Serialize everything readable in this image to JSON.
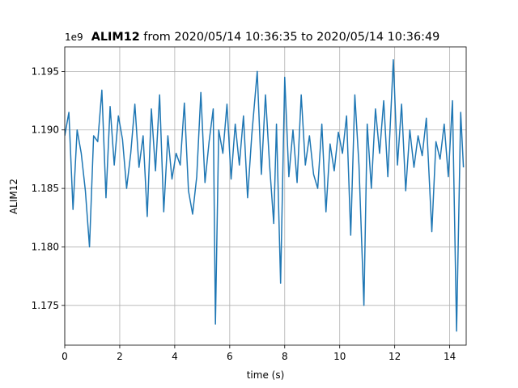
{
  "chart_data": {
    "type": "line",
    "title_bold": "ALIM12",
    "title": " from 2020/05/14 10:36:35 to 2020/05/14 10:36:49",
    "xlabel": "time (s)",
    "ylabel": "ALIM12",
    "y_offset_label": "1e9",
    "x": [
      0.0,
      0.15,
      0.3,
      0.45,
      0.6,
      0.75,
      0.9,
      1.05,
      1.2,
      1.35,
      1.5,
      1.65,
      1.8,
      1.95,
      2.1,
      2.25,
      2.4,
      2.55,
      2.7,
      2.85,
      3.0,
      3.15,
      3.3,
      3.45,
      3.6,
      3.75,
      3.9,
      4.05,
      4.2,
      4.35,
      4.5,
      4.65,
      4.8,
      4.95,
      5.1,
      5.25,
      5.4,
      5.48,
      5.6,
      5.75,
      5.9,
      6.05,
      6.2,
      6.35,
      6.5,
      6.65,
      6.8,
      7.0,
      7.15,
      7.3,
      7.45,
      7.6,
      7.7,
      7.85,
      8.0,
      8.15,
      8.3,
      8.45,
      8.6,
      8.75,
      8.9,
      9.05,
      9.2,
      9.35,
      9.5,
      9.65,
      9.8,
      9.95,
      10.1,
      10.25,
      10.4,
      10.55,
      10.7,
      10.88,
      11.0,
      11.15,
      11.3,
      11.45,
      11.6,
      11.75,
      11.95,
      12.1,
      12.25,
      12.4,
      12.55,
      12.7,
      12.85,
      13.0,
      13.15,
      13.35,
      13.5,
      13.65,
      13.8,
      13.95,
      14.1,
      14.25,
      14.4,
      14.5
    ],
    "series": [
      {
        "name": "ALIM12",
        "color": "#1f77b4",
        "values": [
          1.1895,
          1.1915,
          1.1832,
          1.19,
          1.188,
          1.1848,
          1.18,
          1.1895,
          1.189,
          1.1934,
          1.1842,
          1.192,
          1.187,
          1.1912,
          1.1892,
          1.185,
          1.188,
          1.1922,
          1.1868,
          1.1895,
          1.1826,
          1.1918,
          1.1865,
          1.193,
          1.183,
          1.1895,
          1.1858,
          1.188,
          1.187,
          1.1923,
          1.1848,
          1.1828,
          1.186,
          1.1932,
          1.1855,
          1.189,
          1.1918,
          1.1734,
          1.19,
          1.188,
          1.1922,
          1.1858,
          1.1905,
          1.187,
          1.1912,
          1.1842,
          1.1895,
          1.195,
          1.1862,
          1.193,
          1.187,
          1.182,
          1.1905,
          1.1769,
          1.1945,
          1.186,
          1.19,
          1.1855,
          1.193,
          1.187,
          1.1895,
          1.1862,
          1.185,
          1.1905,
          1.183,
          1.1888,
          1.1865,
          1.1898,
          1.188,
          1.1912,
          1.181,
          1.193,
          1.187,
          1.175,
          1.1905,
          1.185,
          1.1918,
          1.188,
          1.1925,
          1.186,
          1.196,
          1.187,
          1.1922,
          1.1848,
          1.19,
          1.1868,
          1.1895,
          1.1878,
          1.191,
          1.1813,
          1.189,
          1.1875,
          1.1905,
          1.186,
          1.1925,
          1.1728,
          1.1915,
          1.1868
        ]
      }
    ],
    "xlim": [
      0,
      14.6
    ],
    "xticks": [
      0,
      2,
      4,
      6,
      8,
      10,
      12,
      14
    ],
    "ylim": [
      1.1716,
      1.1971
    ],
    "yticks": [
      1.175,
      {
        "value": 1.18,
        "label": "1.180"
      },
      1.185,
      {
        "value": 1.19,
        "label": "1.190"
      },
      1.195
    ],
    "grid": true
  }
}
